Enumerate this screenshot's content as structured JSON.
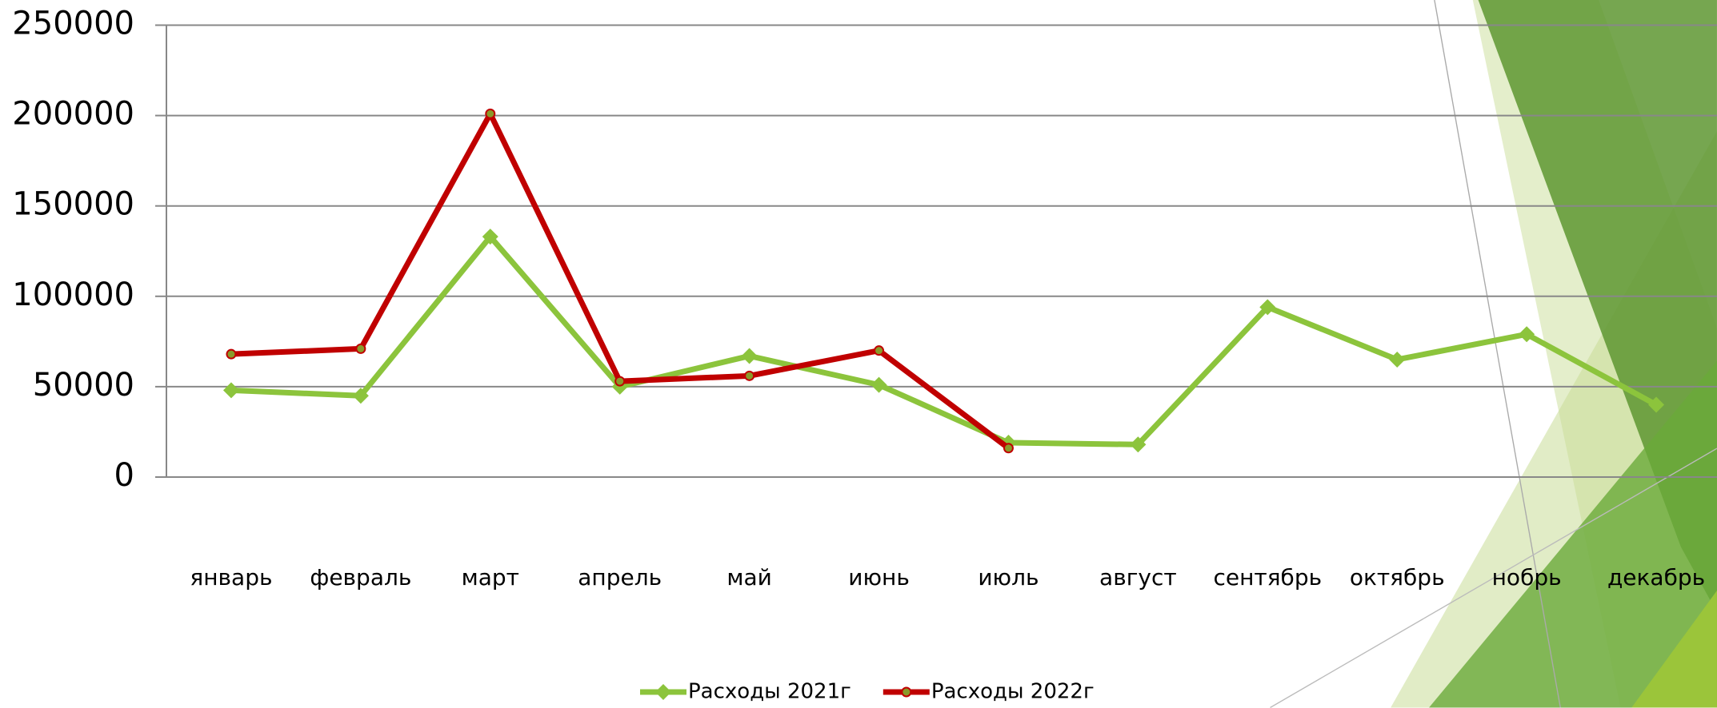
{
  "chart_data": {
    "type": "line",
    "categories": [
      "январь",
      "февраль",
      "март",
      "апрель",
      "май",
      "июнь",
      "июль",
      "август",
      "сентябрь",
      "октябрь",
      "нобрь",
      "декабрь"
    ],
    "series": [
      {
        "name": "Расходы 2021г",
        "color": "#8cc43c",
        "values": [
          48000,
          45000,
          133000,
          50000,
          67000,
          51000,
          19000,
          18000,
          94000,
          65000,
          79000,
          40000
        ]
      },
      {
        "name": "Расходы 2022г",
        "color": "#c00000",
        "values": [
          68000,
          71000,
          201000,
          53000,
          56000,
          70000,
          16000,
          null,
          null,
          null,
          null,
          null
        ]
      }
    ],
    "ylim": [
      0,
      250000
    ],
    "yticks": [
      0,
      50000,
      100000,
      150000,
      200000,
      250000
    ],
    "grid": true,
    "legend": "bottom"
  }
}
